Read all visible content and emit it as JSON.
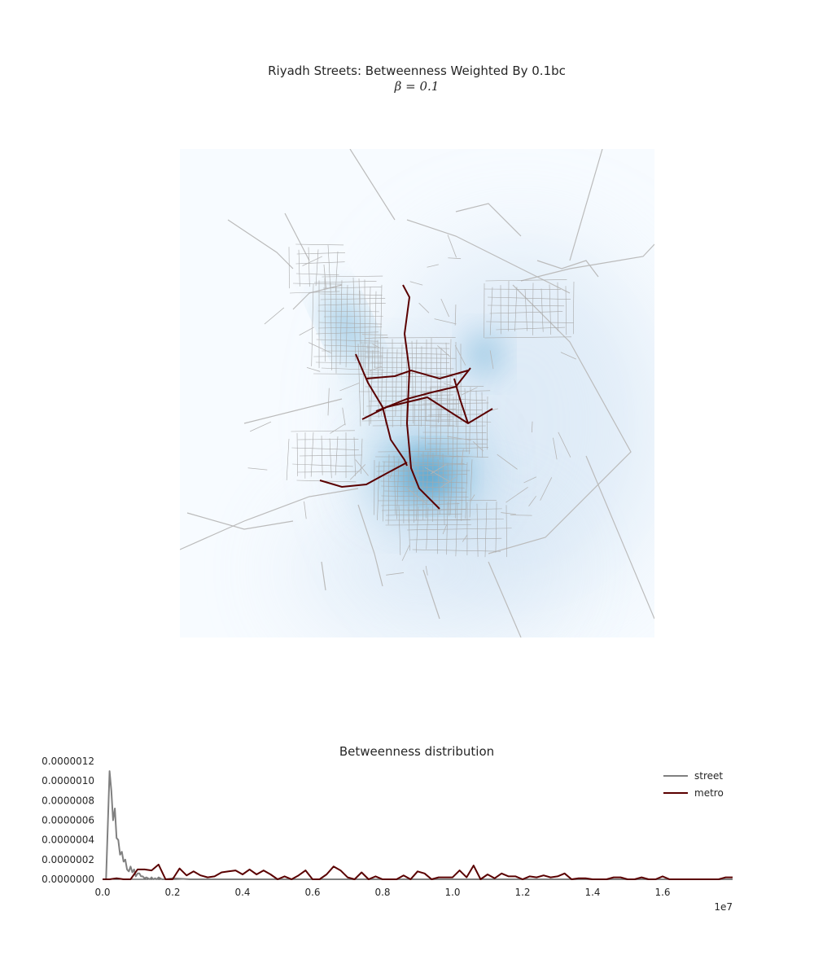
{
  "map": {
    "title": "Riyadh Streets: Betweenness Weighted By 0.1bc",
    "subtitle": "β = 0.1",
    "colors": {
      "background": "#f7fbff",
      "density": "#2b8cbe",
      "street": "#aaaaaa",
      "metro": "#5a0000"
    }
  },
  "chart_data": {
    "type": "line",
    "title": "Betweenness distribution",
    "xlabel": "",
    "ylabel": "",
    "x_offset_label": "1e7",
    "xlim": [
      0.0,
      1.8
    ],
    "ylim": [
      0.0,
      1.2e-06
    ],
    "x_ticks": [
      "0.0",
      "0.2",
      "0.4",
      "0.6",
      "0.8",
      "1.0",
      "1.2",
      "1.4",
      "1.6"
    ],
    "x_tick_values": [
      0.0,
      0.2,
      0.4,
      0.6,
      0.8,
      1.0,
      1.2,
      1.4,
      1.6
    ],
    "y_ticks": [
      "0.0000000",
      "0.0000002",
      "0.0000004",
      "0.0000006",
      "0.0000008",
      "0.0000010",
      "0.0000012"
    ],
    "y_tick_values": [
      0.0,
      2e-07,
      4e-07,
      6e-07,
      8e-07,
      1e-06,
      1.2e-06
    ],
    "legend": {
      "placement": "top-right"
    },
    "grid": false,
    "series": [
      {
        "name": "street",
        "color": "#808080",
        "x": [
          0.0,
          0.01,
          0.02,
          0.025,
          0.03,
          0.035,
          0.04,
          0.045,
          0.05,
          0.055,
          0.06,
          0.065,
          0.07,
          0.075,
          0.08,
          0.085,
          0.09,
          0.095,
          0.1,
          0.105,
          0.11,
          0.115,
          0.12,
          0.125,
          0.13,
          0.135,
          0.14,
          0.145,
          0.15,
          0.155,
          0.16,
          0.17,
          0.18,
          0.2,
          0.25,
          0.3,
          0.4,
          0.5,
          0.6,
          0.8,
          1.0,
          1.2,
          1.4,
          1.6,
          1.8
        ],
        "y": [
          0.0,
          0.0,
          1.1e-06,
          9e-07,
          6e-07,
          7.2e-07,
          4.2e-07,
          4e-07,
          2.5e-07,
          2.8e-07,
          1.8e-07,
          2e-07,
          1e-07,
          8e-08,
          1.3e-07,
          7e-08,
          1e-07,
          3e-08,
          6e-08,
          6e-08,
          3e-08,
          3e-08,
          1e-08,
          2e-08,
          1e-08,
          0.0,
          2e-08,
          0.0,
          1e-08,
          0.0,
          2e-08,
          0.0,
          0.0,
          1e-08,
          0.0,
          0.0,
          0.0,
          0.0,
          0.0,
          0.0,
          0.0,
          0.0,
          0.0,
          0.0,
          0.0
        ]
      },
      {
        "name": "metro",
        "color": "#5a0000",
        "x": [
          0.0,
          0.02,
          0.04,
          0.06,
          0.08,
          0.1,
          0.12,
          0.14,
          0.16,
          0.18,
          0.2,
          0.22,
          0.24,
          0.26,
          0.28,
          0.3,
          0.32,
          0.34,
          0.36,
          0.38,
          0.4,
          0.42,
          0.44,
          0.46,
          0.48,
          0.5,
          0.52,
          0.54,
          0.56,
          0.58,
          0.6,
          0.62,
          0.64,
          0.66,
          0.68,
          0.7,
          0.72,
          0.74,
          0.76,
          0.78,
          0.8,
          0.82,
          0.84,
          0.86,
          0.88,
          0.9,
          0.92,
          0.94,
          0.96,
          0.98,
          1.0,
          1.02,
          1.04,
          1.06,
          1.08,
          1.1,
          1.12,
          1.14,
          1.16,
          1.18,
          1.2,
          1.22,
          1.24,
          1.26,
          1.28,
          1.3,
          1.32,
          1.34,
          1.36,
          1.38,
          1.4,
          1.42,
          1.44,
          1.46,
          1.48,
          1.5,
          1.52,
          1.54,
          1.56,
          1.58,
          1.6,
          1.62,
          1.64,
          1.66,
          1.68,
          1.7,
          1.72,
          1.74,
          1.76,
          1.78,
          1.8
        ],
        "y": [
          0.0,
          0.0,
          1e-08,
          0.0,
          0.0,
          1e-07,
          1e-07,
          9e-08,
          1.5e-07,
          0.0,
          0.0,
          1.1e-07,
          4e-08,
          8e-08,
          4e-08,
          2e-08,
          3e-08,
          7e-08,
          8e-08,
          9e-08,
          5e-08,
          1e-07,
          5e-08,
          9e-08,
          5e-08,
          0.0,
          3e-08,
          0.0,
          4e-08,
          9e-08,
          0.0,
          0.0,
          5e-08,
          1.3e-07,
          9e-08,
          2e-08,
          0.0,
          7e-08,
          0.0,
          3e-08,
          0.0,
          0.0,
          0.0,
          4e-08,
          0.0,
          8e-08,
          6e-08,
          0.0,
          2e-08,
          2e-08,
          2e-08,
          9e-08,
          2e-08,
          1.4e-07,
          0.0,
          5e-08,
          1e-08,
          6e-08,
          3e-08,
          3e-08,
          0.0,
          3e-08,
          2e-08,
          4e-08,
          2e-08,
          3e-08,
          6e-08,
          0.0,
          1e-08,
          1e-08,
          0.0,
          0.0,
          0.0,
          2e-08,
          2e-08,
          0.0,
          0.0,
          2e-08,
          0.0,
          0.0,
          3e-08,
          0.0,
          0.0,
          0.0,
          0.0,
          0.0,
          0.0,
          0.0,
          0.0,
          2e-08,
          2e-08
        ]
      }
    ]
  }
}
